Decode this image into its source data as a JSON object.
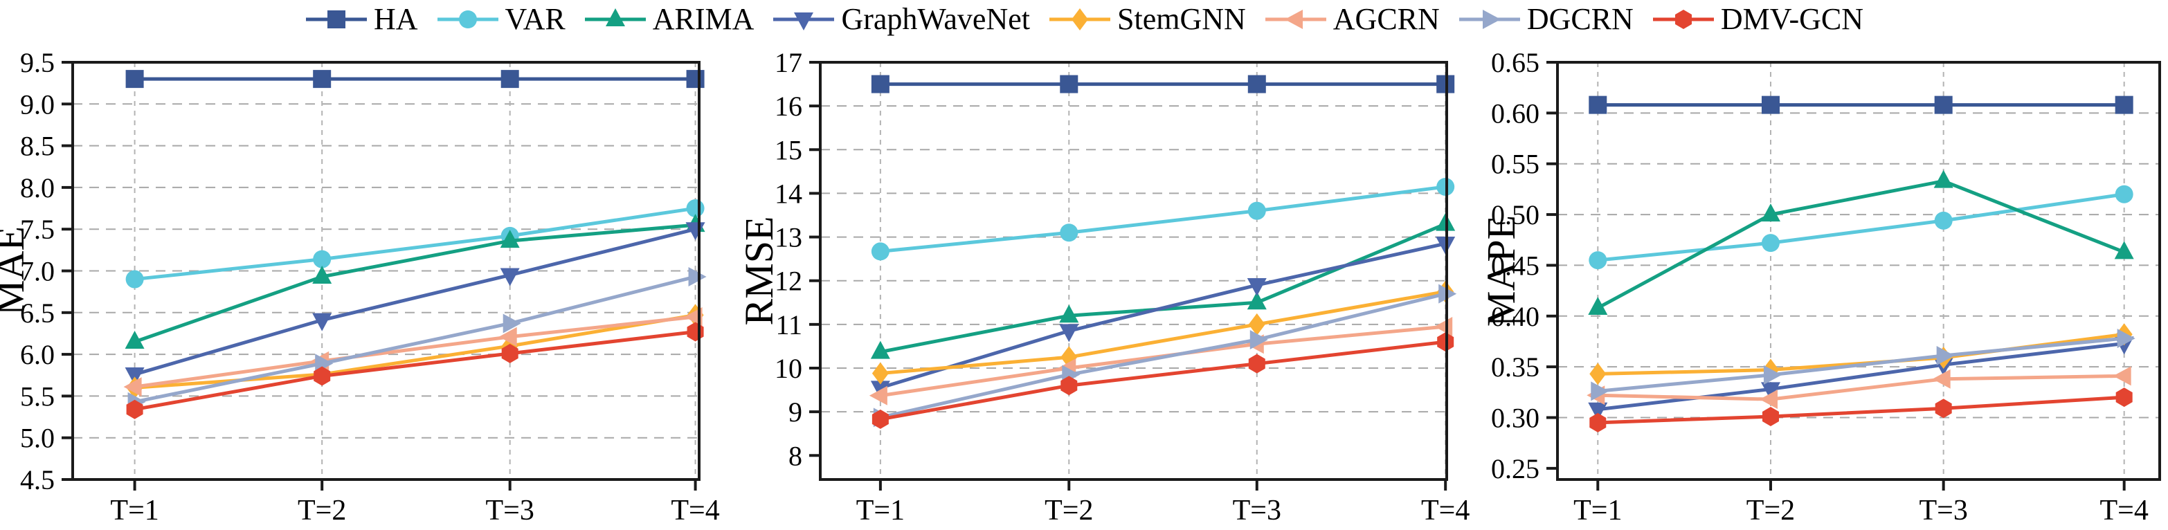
{
  "legend": {
    "items": [
      {
        "label": "HA",
        "color": "#3A5794",
        "marker": "square"
      },
      {
        "label": "VAR",
        "color": "#5BC8DC",
        "marker": "circle"
      },
      {
        "label": "ARIMA",
        "color": "#14A083",
        "marker": "triangle-up"
      },
      {
        "label": "GraphWaveNet",
        "color": "#4C66AB",
        "marker": "triangle-down"
      },
      {
        "label": "StemGNN",
        "color": "#FBB034",
        "marker": "diamond"
      },
      {
        "label": "AGCRN",
        "color": "#F4A689",
        "marker": "triangle-left"
      },
      {
        "label": "DGCRN",
        "color": "#95A7CB",
        "marker": "triangle-right"
      },
      {
        "label": "DMV-GCN",
        "color": "#E34430",
        "marker": "hexagon"
      }
    ]
  },
  "chart_data": [
    {
      "type": "line",
      "ylabel": "MAE",
      "categories": [
        "T=1",
        "T=2",
        "T=3",
        "T=4"
      ],
      "ylim": [
        4.5,
        9.5
      ],
      "yticks": [
        "4.5",
        "5.0",
        "5.5",
        "6.0",
        "6.5",
        "7.0",
        "7.5",
        "8.0",
        "8.5",
        "9.0",
        "9.5"
      ],
      "grid": "dashed-horizontal-and-vertical",
      "legend_position": "figure-top",
      "series": [
        {
          "name": "HA",
          "color": "#3A5794",
          "marker": "square",
          "values": [
            9.3,
            9.3,
            9.3,
            9.3
          ]
        },
        {
          "name": "VAR",
          "color": "#5BC8DC",
          "marker": "circle",
          "values": [
            6.9,
            7.14,
            7.42,
            7.75
          ]
        },
        {
          "name": "ARIMA",
          "color": "#14A083",
          "marker": "triangle-up",
          "values": [
            6.15,
            6.93,
            7.36,
            7.55
          ]
        },
        {
          "name": "GraphWaveNet",
          "color": "#4C66AB",
          "marker": "triangle-down",
          "values": [
            5.76,
            6.41,
            6.95,
            7.5
          ]
        },
        {
          "name": "StemGNN",
          "color": "#FBB034",
          "marker": "diamond",
          "values": [
            5.6,
            5.76,
            6.1,
            6.47
          ]
        },
        {
          "name": "AGCRN",
          "color": "#F4A689",
          "marker": "triangle-left",
          "values": [
            5.61,
            5.92,
            6.21,
            6.45
          ]
        },
        {
          "name": "DGCRN",
          "color": "#95A7CB",
          "marker": "triangle-right",
          "values": [
            5.43,
            5.89,
            6.37,
            6.93
          ]
        },
        {
          "name": "DMV-GCN",
          "color": "#E34430",
          "marker": "hexagon",
          "values": [
            5.34,
            5.74,
            6.01,
            6.27
          ]
        }
      ]
    },
    {
      "type": "line",
      "ylabel": "RMSE",
      "categories": [
        "T=1",
        "T=2",
        "T=3",
        "T=4"
      ],
      "ylim": [
        8,
        17
      ],
      "yticks": [
        "8",
        "9",
        "10",
        "11",
        "12",
        "13",
        "14",
        "15",
        "16",
        "17"
      ],
      "grid": "dashed-horizontal-and-vertical",
      "legend_position": "figure-top",
      "series": [
        {
          "name": "HA",
          "color": "#3A5794",
          "marker": "square",
          "values": [
            16.5,
            16.5,
            16.5,
            16.5
          ]
        },
        {
          "name": "VAR",
          "color": "#5BC8DC",
          "marker": "circle",
          "values": [
            12.67,
            13.1,
            13.6,
            14.15
          ]
        },
        {
          "name": "ARIMA",
          "color": "#14A083",
          "marker": "triangle-up",
          "values": [
            10.37,
            11.2,
            11.5,
            13.3
          ]
        },
        {
          "name": "GraphWaveNet",
          "color": "#4C66AB",
          "marker": "triangle-down",
          "values": [
            9.55,
            10.85,
            11.9,
            12.85
          ]
        },
        {
          "name": "StemGNN",
          "color": "#FBB034",
          "marker": "diamond",
          "values": [
            9.88,
            10.25,
            11.0,
            11.75
          ]
        },
        {
          "name": "AGCRN",
          "color": "#F4A689",
          "marker": "triangle-left",
          "values": [
            9.37,
            10.0,
            10.55,
            10.95
          ]
        },
        {
          "name": "DGCRN",
          "color": "#95A7CB",
          "marker": "triangle-right",
          "values": [
            8.87,
            9.85,
            10.65,
            11.7
          ]
        },
        {
          "name": "DMV-GCN",
          "color": "#E34430",
          "marker": "hexagon",
          "values": [
            8.83,
            9.6,
            10.1,
            10.6
          ]
        }
      ]
    },
    {
      "type": "line",
      "ylabel": "MAPE",
      "categories": [
        "T=1",
        "T=2",
        "T=3",
        "T=4"
      ],
      "ylim": [
        0.25,
        0.65
      ],
      "yticks": [
        "0.25",
        "0.30",
        "0.35",
        "0.40",
        "0.45",
        "0.50",
        "0.55",
        "0.60",
        "0.65"
      ],
      "grid": "dashed-horizontal-and-vertical",
      "legend_position": "figure-top",
      "series": [
        {
          "name": "HA",
          "color": "#3A5794",
          "marker": "square",
          "values": [
            0.608,
            0.608,
            0.608,
            0.608
          ]
        },
        {
          "name": "VAR",
          "color": "#5BC8DC",
          "marker": "circle",
          "values": [
            0.455,
            0.472,
            0.494,
            0.52
          ]
        },
        {
          "name": "ARIMA",
          "color": "#14A083",
          "marker": "triangle-up",
          "values": [
            0.408,
            0.5,
            0.533,
            0.463
          ]
        },
        {
          "name": "GraphWaveNet",
          "color": "#4C66AB",
          "marker": "triangle-down",
          "values": [
            0.308,
            0.328,
            0.352,
            0.373
          ]
        },
        {
          "name": "StemGNN",
          "color": "#FBB034",
          "marker": "diamond",
          "values": [
            0.343,
            0.347,
            0.359,
            0.382
          ]
        },
        {
          "name": "AGCRN",
          "color": "#F4A689",
          "marker": "triangle-left",
          "values": [
            0.322,
            0.318,
            0.338,
            0.341
          ]
        },
        {
          "name": "DGCRN",
          "color": "#95A7CB",
          "marker": "triangle-right",
          "values": [
            0.326,
            0.342,
            0.361,
            0.378
          ]
        },
        {
          "name": "DMV-GCN",
          "color": "#E34430",
          "marker": "hexagon",
          "values": [
            0.295,
            0.301,
            0.309,
            0.32
          ]
        }
      ]
    }
  ]
}
